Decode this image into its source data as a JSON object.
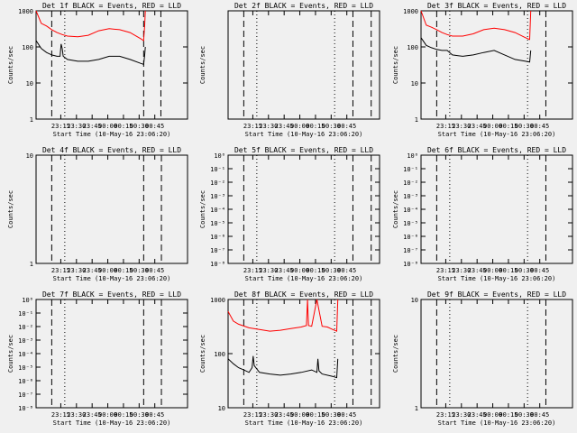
{
  "figure": {
    "title_template": "Det {det} BLACK = Events, RED = LLD",
    "xlabel": "Start Time (10-May-16 23:06:20)",
    "ylabel": "Counts/sec",
    "x_ticks": [
      "23:15",
      "23:30",
      "23:45",
      "00:00",
      "00:15",
      "00:30",
      "00:45"
    ]
  },
  "chart_data": [
    {
      "panel": "1f",
      "type": "line",
      "yscale": "log",
      "yticks": [
        "1",
        "10",
        "100",
        "1000"
      ],
      "ylim": [
        1,
        1000
      ],
      "series": [
        {
          "name": "LLD",
          "color": "#ff0000",
          "x": [
            0,
            5,
            10,
            15,
            20,
            25,
            30,
            40,
            50,
            60,
            70,
            80,
            90,
            100,
            103,
            104,
            104.6
          ],
          "y": [
            1000,
            450,
            380,
            300,
            250,
            220,
            200,
            190,
            210,
            280,
            320,
            300,
            250,
            170,
            150,
            400,
            1000
          ]
        },
        {
          "name": "Events",
          "color": "#000000",
          "x": [
            0,
            5,
            10,
            15,
            20,
            23,
            24,
            25,
            26,
            30,
            40,
            50,
            60,
            70,
            80,
            90,
            100,
            103,
            104,
            104.6
          ],
          "y": [
            150,
            90,
            70,
            60,
            55,
            55,
            120,
            90,
            55,
            45,
            40,
            40,
            45,
            55,
            55,
            45,
            35,
            33,
            60,
            100
          ]
        }
      ],
      "dashed_x": [
        15,
        103,
        119.5
      ],
      "dotted_x": [
        27.5
      ]
    },
    {
      "panel": "2f",
      "type": "line",
      "yscale": "linear",
      "yticks": [],
      "series": [],
      "dashed_x": [
        15,
        119.5,
        137
      ],
      "dotted_x": [
        27.5,
        102
      ]
    },
    {
      "panel": "3f",
      "type": "line",
      "yscale": "log",
      "yticks": [
        "1",
        "10",
        "100",
        "1000"
      ],
      "ylim": [
        1,
        1000
      ],
      "series": [
        {
          "name": "LLD",
          "color": "#ff0000",
          "x": [
            0,
            5,
            10,
            15,
            20,
            25,
            30,
            40,
            50,
            60,
            70,
            80,
            90,
            100,
            104,
            105
          ],
          "y": [
            1000,
            400,
            350,
            300,
            250,
            220,
            200,
            200,
            230,
            300,
            330,
            300,
            250,
            180,
            160,
            1000
          ]
        },
        {
          "name": "Events",
          "color": "#000000",
          "x": [
            0,
            5,
            10,
            15,
            20,
            25,
            30,
            40,
            50,
            60,
            70,
            80,
            90,
            100,
            104,
            105
          ],
          "y": [
            180,
            110,
            95,
            85,
            80,
            80,
            60,
            55,
            60,
            70,
            80,
            60,
            45,
            40,
            38,
            80
          ]
        }
      ],
      "dashed_x": [
        15,
        119.5
      ],
      "dotted_x": [
        27.5,
        102
      ]
    },
    {
      "panel": "4f",
      "type": "line",
      "yscale": "log",
      "yticks": [
        "1",
        "10"
      ],
      "ylim": [
        1,
        10
      ],
      "series": [],
      "dashed_x": [
        15,
        103,
        120
      ],
      "dotted_x": [
        27.5
      ]
    },
    {
      "panel": "5f",
      "type": "line",
      "yscale": "log",
      "yticks": [
        "10⁻⁸",
        "10⁻⁷",
        "10⁻⁶",
        "10⁻⁵",
        "10⁻⁴",
        "10⁻³",
        "10⁻²",
        "10⁻¹",
        "10⁰"
      ],
      "series": [],
      "dashed_x": [
        15,
        119.5,
        137
      ],
      "dotted_x": [
        27.5,
        102
      ]
    },
    {
      "panel": "6f",
      "type": "line",
      "yscale": "log",
      "yticks": [
        "10⁻⁸",
        "10⁻⁷",
        "10⁻⁶",
        "10⁻⁵",
        "10⁻⁴",
        "10⁻³",
        "10⁻²",
        "10⁻¹",
        "10⁰"
      ],
      "series": [],
      "dashed_x": [
        15,
        119.5
      ],
      "dotted_x": [
        27.5,
        102
      ]
    },
    {
      "panel": "7f",
      "type": "line",
      "yscale": "log",
      "yticks": [
        "10⁻⁸",
        "10⁻⁷",
        "10⁻⁶",
        "10⁻⁵",
        "10⁻⁴",
        "10⁻³",
        "10⁻²",
        "10⁻¹",
        "10⁰"
      ],
      "series": [],
      "dashed_x": [
        15,
        103,
        120
      ],
      "dotted_x": [
        27.5
      ]
    },
    {
      "panel": "8f",
      "type": "line",
      "yscale": "log",
      "yticks": [
        "10",
        "100",
        "1000"
      ],
      "ylim": [
        10,
        1000
      ],
      "series": [
        {
          "name": "LLD",
          "color": "#ff0000",
          "x": [
            0,
            5,
            10,
            20,
            30,
            40,
            50,
            60,
            70,
            75,
            76,
            77,
            80,
            85,
            90,
            95,
            100,
            104,
            105
          ],
          "y": [
            600,
            400,
            350,
            300,
            280,
            260,
            270,
            290,
            310,
            330,
            1000,
            330,
            320,
            1000,
            320,
            310,
            280,
            260,
            1000
          ]
        },
        {
          "name": "Events",
          "color": "#000000",
          "x": [
            0,
            5,
            10,
            15,
            20,
            23,
            24,
            25,
            30,
            40,
            50,
            60,
            70,
            80,
            85,
            86,
            87,
            90,
            100,
            104,
            105
          ],
          "y": [
            80,
            65,
            55,
            50,
            45,
            55,
            90,
            60,
            45,
            42,
            40,
            42,
            45,
            50,
            45,
            80,
            48,
            42,
            38,
            36,
            80
          ]
        }
      ],
      "dashed_x": [
        15,
        119.5,
        137
      ],
      "dotted_x": [
        27.5,
        102
      ]
    },
    {
      "panel": "9f",
      "type": "line",
      "yscale": "log",
      "yticks": [
        "1",
        "10"
      ],
      "ylim": [
        1,
        10
      ],
      "series": [],
      "dashed_x": [
        15,
        119.5
      ],
      "dotted_x": [
        27.5,
        102
      ]
    }
  ]
}
